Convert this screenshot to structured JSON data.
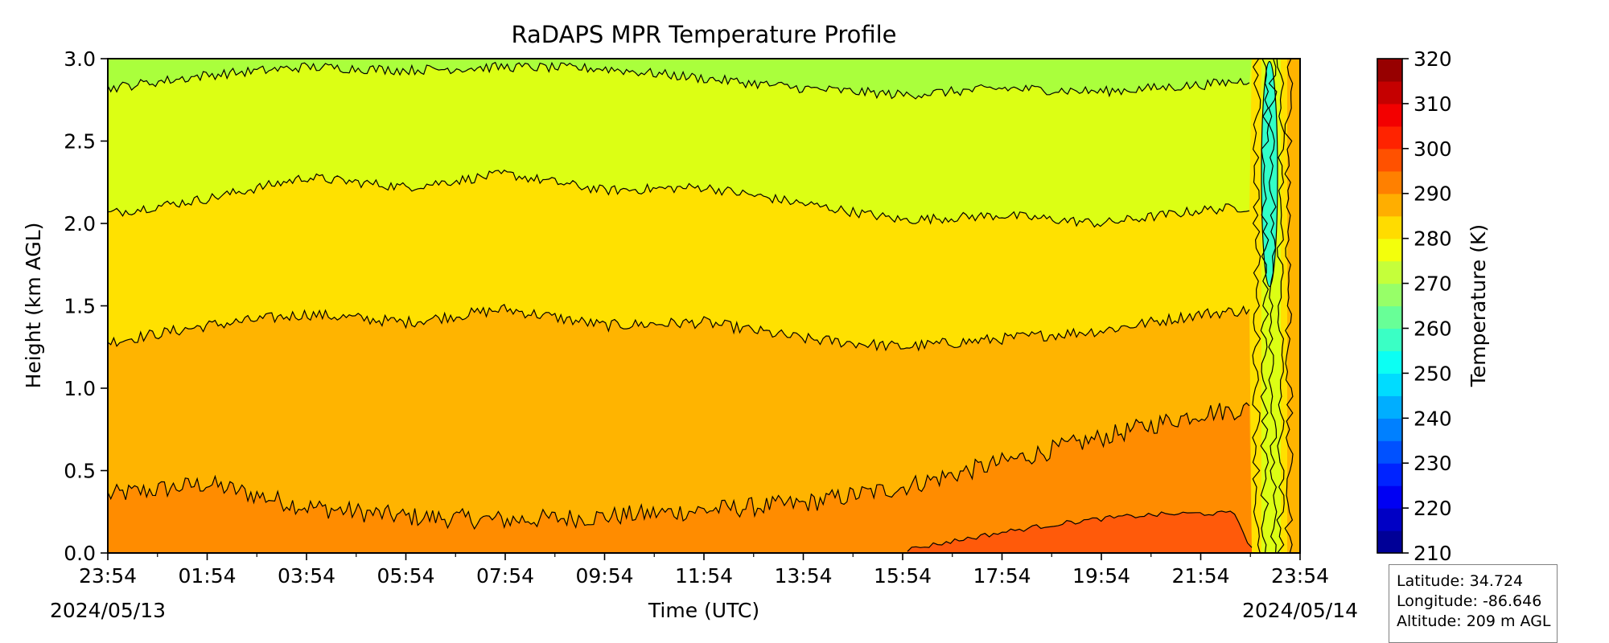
{
  "chart_data": {
    "type": "heatmap",
    "title": "RaDAPS MPR Temperature Profile",
    "xlabel": "Time (UTC)",
    "ylabel": "Height (km AGL)",
    "x_ticks": [
      "23:54",
      "01:54",
      "03:54",
      "05:54",
      "07:54",
      "09:54",
      "11:54",
      "13:54",
      "15:54",
      "17:54",
      "19:54",
      "21:54",
      "23:54"
    ],
    "x_range": [
      "2024-05-13T23:54Z",
      "2024-05-14T23:54Z"
    ],
    "date_start_label": "2024/05/13",
    "date_end_label": "2024/05/14",
    "y_ticks": [
      "0.0",
      "0.5",
      "1.0",
      "1.5",
      "2.0",
      "2.5",
      "3.0"
    ],
    "ylim": [
      0,
      3.0
    ],
    "colorbar": {
      "label": "Temperature (K)",
      "range": [
        210,
        320
      ],
      "step": 5,
      "tick_labels": [
        "210",
        "220",
        "230",
        "240",
        "250",
        "260",
        "270",
        "280",
        "290",
        "300",
        "310",
        "320"
      ],
      "colormap": "jet"
    },
    "contour_bands_K": [
      {
        "range": [
          295,
          300
        ],
        "color": "#ff5a0a"
      },
      {
        "range": [
          290,
          295
        ],
        "color": "#ff8c00"
      },
      {
        "range": [
          285,
          290
        ],
        "color": "#ffb400"
      },
      {
        "range": [
          280,
          285
        ],
        "color": "#ffe100"
      },
      {
        "range": [
          275,
          280
        ],
        "color": "#dcff14"
      },
      {
        "range": [
          270,
          275
        ],
        "color": "#aaff3c"
      },
      {
        "range": [
          250,
          260
        ],
        "color": "#32ffc8"
      }
    ],
    "contour_levels_km": [
      {
        "level_K": 290,
        "height_km": [
          0.35,
          0.42,
          0.28,
          0.22,
          0.2,
          0.22,
          0.26,
          0.3,
          0.4,
          0.55,
          0.7,
          0.85,
          0.9
        ]
      },
      {
        "level_K": 285,
        "height_km": [
          1.28,
          1.38,
          1.45,
          1.4,
          1.48,
          1.38,
          1.4,
          1.3,
          1.25,
          1.3,
          1.35,
          1.45,
          1.5
        ]
      },
      {
        "level_K": 280,
        "height_km": [
          2.06,
          2.15,
          2.28,
          2.22,
          2.3,
          2.2,
          2.22,
          2.12,
          2.02,
          2.05,
          2.0,
          2.08,
          2.12
        ]
      },
      {
        "level_K": 275,
        "height_km": [
          2.82,
          2.9,
          2.95,
          2.93,
          2.95,
          2.94,
          2.88,
          2.82,
          2.78,
          2.82,
          2.8,
          2.84,
          2.9
        ]
      },
      {
        "level_K": 295,
        "height_km": [
          null,
          null,
          null,
          null,
          null,
          null,
          null,
          null,
          0.02,
          0.08,
          0.15,
          0.25,
          0.2
        ]
      }
    ],
    "grid": false
  },
  "info": {
    "latitude": "Latitude: 34.724",
    "longitude": "Longitude: -86.646",
    "altitude": "Altitude: 209 m AGL"
  }
}
